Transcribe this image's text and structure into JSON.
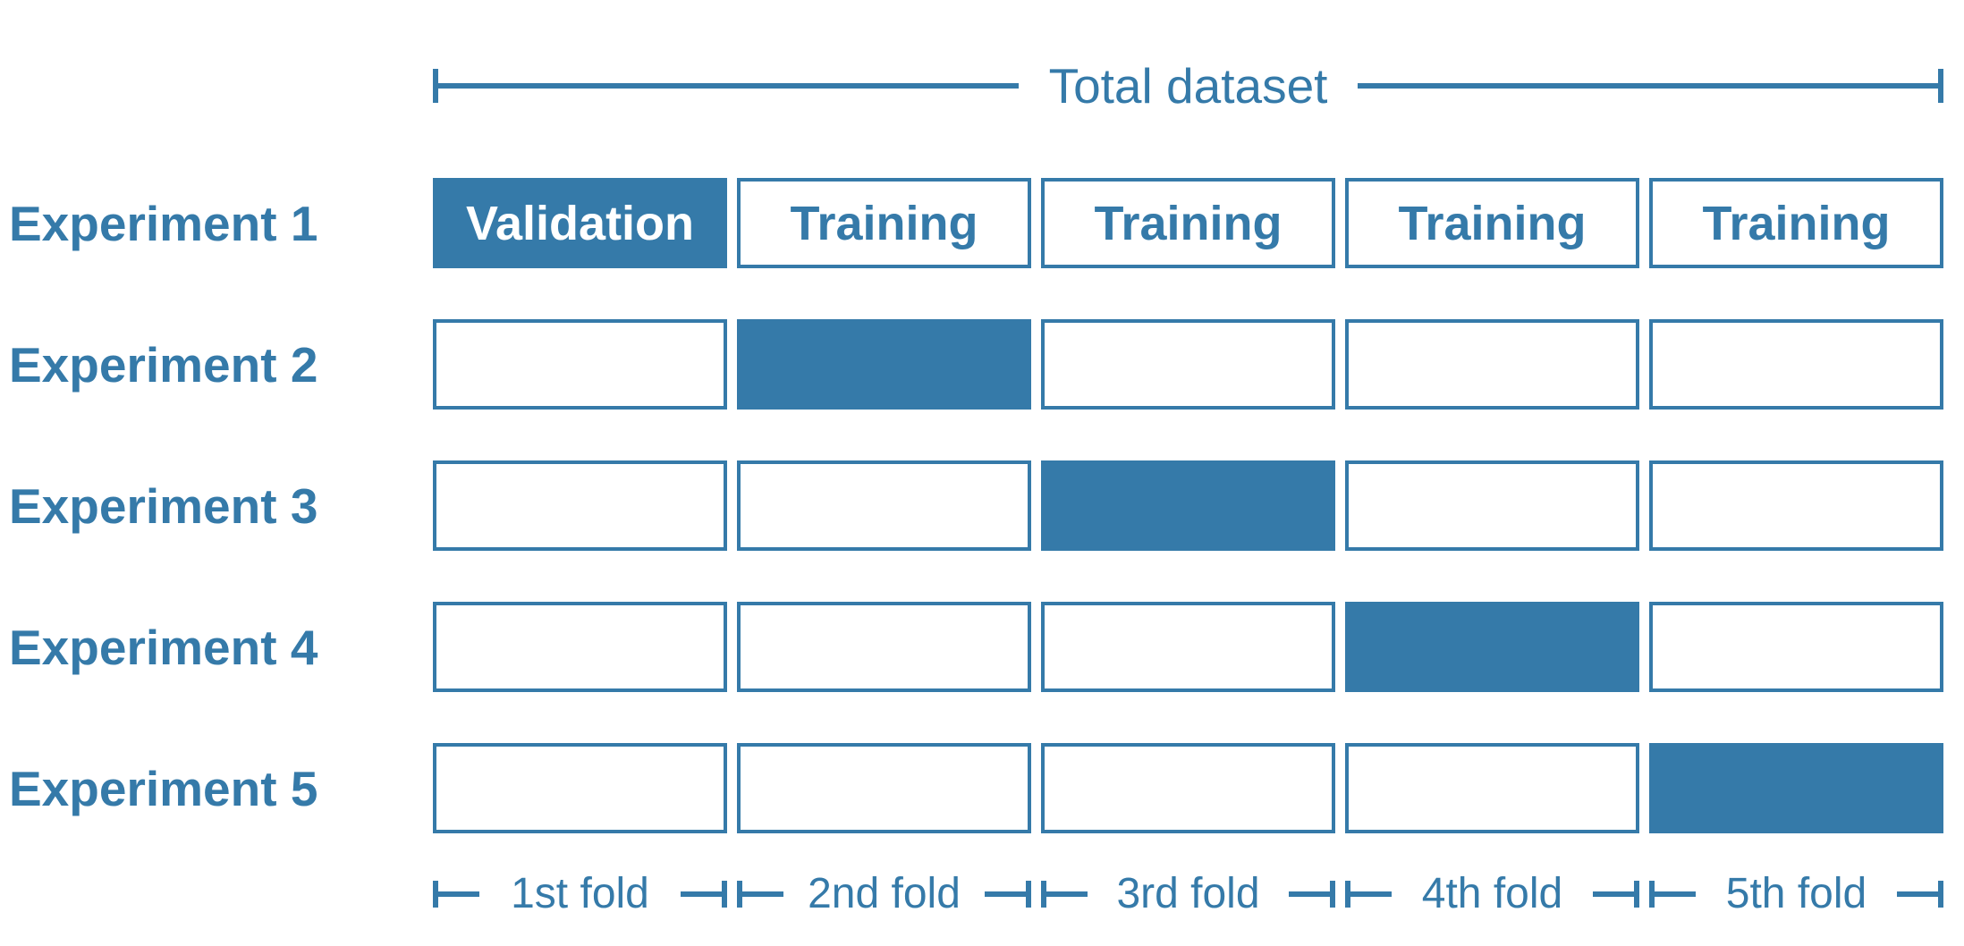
{
  "colors": {
    "accent": "#357AA9",
    "validation_text": "#FFFFFF"
  },
  "header": {
    "label": "Total dataset"
  },
  "experiments": [
    {
      "label": "Experiment 1",
      "cells": [
        {
          "state": "filled",
          "text": "Validation"
        },
        {
          "state": "outlined",
          "text": "Training"
        },
        {
          "state": "outlined",
          "text": "Training"
        },
        {
          "state": "outlined",
          "text": "Training"
        },
        {
          "state": "outlined",
          "text": "Training"
        }
      ]
    },
    {
      "label": "Experiment 2",
      "cells": [
        {
          "state": "outlined",
          "text": ""
        },
        {
          "state": "filled",
          "text": ""
        },
        {
          "state": "outlined",
          "text": ""
        },
        {
          "state": "outlined",
          "text": ""
        },
        {
          "state": "outlined",
          "text": ""
        }
      ]
    },
    {
      "label": "Experiment 3",
      "cells": [
        {
          "state": "outlined",
          "text": ""
        },
        {
          "state": "outlined",
          "text": ""
        },
        {
          "state": "filled",
          "text": ""
        },
        {
          "state": "outlined",
          "text": ""
        },
        {
          "state": "outlined",
          "text": ""
        }
      ]
    },
    {
      "label": "Experiment 4",
      "cells": [
        {
          "state": "outlined",
          "text": ""
        },
        {
          "state": "outlined",
          "text": ""
        },
        {
          "state": "outlined",
          "text": ""
        },
        {
          "state": "filled",
          "text": ""
        },
        {
          "state": "outlined",
          "text": ""
        }
      ]
    },
    {
      "label": "Experiment 5",
      "cells": [
        {
          "state": "outlined",
          "text": ""
        },
        {
          "state": "outlined",
          "text": ""
        },
        {
          "state": "outlined",
          "text": ""
        },
        {
          "state": "outlined",
          "text": ""
        },
        {
          "state": "filled",
          "text": ""
        }
      ]
    }
  ],
  "folds": [
    {
      "label": "1st fold"
    },
    {
      "label": "2nd fold"
    },
    {
      "label": "3rd fold"
    },
    {
      "label": "4th fold"
    },
    {
      "label": "5th fold"
    }
  ]
}
